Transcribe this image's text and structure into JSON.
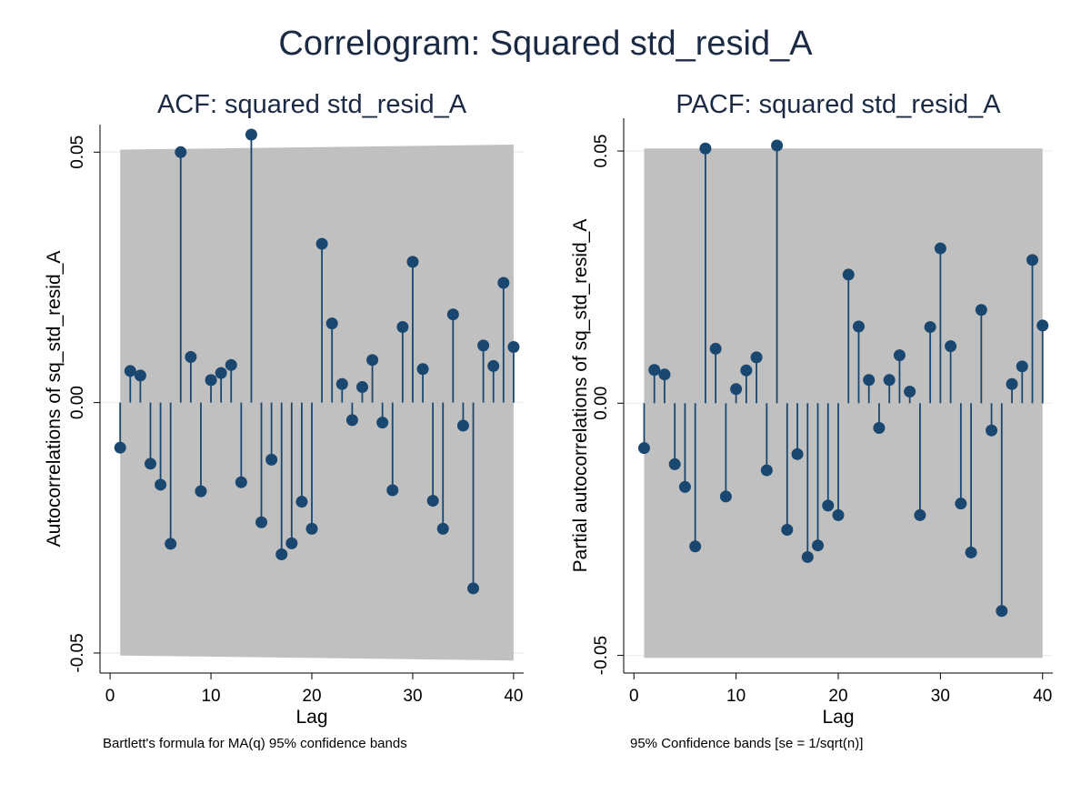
{
  "title": "Correlogram: Squared std_resid_A",
  "colors": {
    "background": "#ffffff",
    "band": "#c0c0c0",
    "marker": "#1a476f",
    "gridline": "#eaf2f3",
    "title": "#1b2a44"
  },
  "chart_data": [
    {
      "type": "scatter",
      "subtype": "stem",
      "title": "ACF: squared std_resid_A",
      "xlabel": "Lag",
      "ylabel": "Autocorrelations of sq_std_resid_A",
      "note": "Bartlett's formula for MA(q) 95% confidence bands",
      "xlim": [
        -1,
        41
      ],
      "ylim": [
        -0.054,
        0.0555
      ],
      "xticks": [
        0,
        10,
        20,
        30,
        40
      ],
      "yticks": [
        -0.05,
        0.0,
        0.05
      ],
      "ytick_labels": [
        "-0.05",
        "0.00",
        "0.05"
      ],
      "grid": true,
      "band": {
        "x": [
          1,
          40
        ],
        "upper": [
          0.0505,
          0.0515
        ],
        "lower": [
          -0.0505,
          -0.0515
        ]
      },
      "x": [
        1,
        2,
        3,
        4,
        5,
        6,
        7,
        8,
        9,
        10,
        11,
        12,
        13,
        14,
        15,
        16,
        17,
        18,
        19,
        20,
        21,
        22,
        23,
        24,
        25,
        26,
        27,
        28,
        29,
        30,
        31,
        32,
        33,
        34,
        35,
        36,
        37,
        38,
        39,
        40
      ],
      "values": [
        -0.009,
        0.0063,
        0.0054,
        -0.0122,
        -0.0164,
        -0.0282,
        0.05,
        0.0091,
        -0.0177,
        0.0045,
        0.0059,
        0.0075,
        -0.0159,
        0.0535,
        -0.0239,
        -0.0114,
        -0.0303,
        -0.0281,
        -0.0198,
        -0.0252,
        0.0317,
        0.0158,
        0.0037,
        -0.0035,
        0.0031,
        0.0085,
        -0.004,
        -0.0175,
        0.0151,
        0.0281,
        0.0067,
        -0.0196,
        -0.0252,
        0.0176,
        -0.0046,
        -0.0371,
        0.0114,
        0.0073,
        0.0239,
        0.0111
      ]
    },
    {
      "type": "scatter",
      "subtype": "stem",
      "title": "PACF: squared std_resid_A",
      "xlabel": "Lag",
      "ylabel": "Partial autocorrelations of sq_std_resid_A",
      "note": "95% Confidence bands [se = 1/sqrt(n)]",
      "xlim": [
        -1,
        41
      ],
      "ylim": [
        -0.0535,
        0.0565
      ],
      "xticks": [
        0,
        10,
        20,
        30,
        40
      ],
      "yticks": [
        -0.05,
        0.0,
        0.05
      ],
      "ytick_labels": [
        "-0.05",
        "0.00",
        "0.05"
      ],
      "grid": true,
      "band": {
        "x": [
          1,
          40
        ],
        "upper": [
          0.0505,
          0.0505
        ],
        "lower": [
          -0.0505,
          -0.0505
        ]
      },
      "x": [
        1,
        2,
        3,
        4,
        5,
        6,
        7,
        8,
        9,
        10,
        11,
        12,
        13,
        14,
        15,
        16,
        17,
        18,
        19,
        20,
        21,
        22,
        23,
        24,
        25,
        26,
        27,
        28,
        29,
        30,
        31,
        32,
        33,
        34,
        35,
        36,
        37,
        38,
        39,
        40
      ],
      "values": [
        -0.0089,
        0.0066,
        0.0057,
        -0.0121,
        -0.0166,
        -0.0284,
        0.0505,
        0.0108,
        -0.0185,
        0.0028,
        0.0065,
        0.0091,
        -0.0133,
        0.0511,
        -0.0251,
        -0.0101,
        -0.0305,
        -0.0282,
        -0.0203,
        -0.0222,
        0.0255,
        0.0152,
        0.0046,
        -0.0049,
        0.0046,
        0.0095,
        0.0023,
        -0.0222,
        0.0151,
        0.0307,
        0.0113,
        -0.0199,
        -0.0296,
        0.0185,
        -0.0054,
        -0.0412,
        0.0038,
        0.0073,
        0.0284,
        0.0154
      ]
    }
  ]
}
